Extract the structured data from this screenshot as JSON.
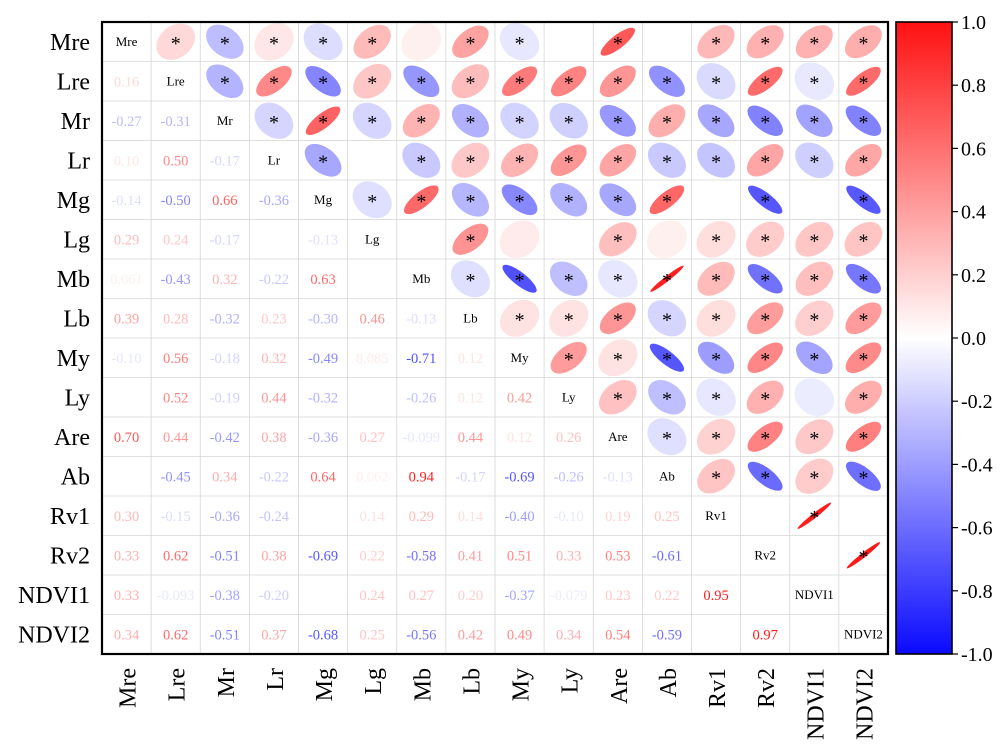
{
  "chart_data": {
    "type": "heatmap",
    "variables": [
      "Mre",
      "Lre",
      "Mr",
      "Lr",
      "Mg",
      "Lg",
      "Mb",
      "Lb",
      "My",
      "Ly",
      "Are",
      "Ab",
      "Rv1",
      "Rv2",
      "NDVI1",
      "NDVI2"
    ],
    "lower_labels": [
      [],
      [
        "0.16"
      ],
      [
        "-0.27",
        "-0.31"
      ],
      [
        "0.10",
        "0.50",
        "-0.17"
      ],
      [
        "-0.14",
        "-0.50",
        "0.66",
        "-0.36"
      ],
      [
        "0.29",
        "0.24",
        "-0.17",
        "",
        "-0.13"
      ],
      [
        "0.061",
        "-0.43",
        "0.32",
        "-0.22",
        "0.63",
        ""
      ],
      [
        "0.39",
        "0.28",
        "-0.32",
        "0.23",
        "-0.30",
        "0.46",
        "-0.13"
      ],
      [
        "-0.10",
        "0.56",
        "-0.18",
        "0.32",
        "-0.49",
        "0.085",
        "-0.71",
        "0.12"
      ],
      [
        "",
        "0.52",
        "-0.19",
        "0.44",
        "-0.32",
        "",
        "-0.26",
        "0.12",
        "0.42"
      ],
      [
        "0.70",
        "0.44",
        "-0.42",
        "0.38",
        "-0.36",
        "0.27",
        "-0.099",
        "0.44",
        "0.12",
        "0.26"
      ],
      [
        "",
        "-0.45",
        "0.34",
        "-0.22",
        "0.64",
        "0.062",
        "0.94",
        "-0.17",
        "-0.69",
        "-0.26",
        "-0.13"
      ],
      [
        "0.30",
        "-0.15",
        "-0.36",
        "-0.24",
        "",
        "0.14",
        "0.29",
        "0.14",
        "-0.40",
        "-0.10",
        "0.19",
        "0.25"
      ],
      [
        "0.33",
        "0.62",
        "-0.51",
        "0.38",
        "-0.69",
        "0.22",
        "-0.58",
        "0.41",
        "0.51",
        "0.33",
        "0.53",
        "-0.61",
        ""
      ],
      [
        "0.33",
        "-0.093",
        "-0.38",
        "-0.20",
        "",
        "0.24",
        "0.27",
        "0.20",
        "-0.37",
        "-0.079",
        "0.23",
        "0.22",
        "0.95",
        ""
      ],
      [
        "0.34",
        "0.62",
        "-0.51",
        "0.37",
        "-0.68",
        "0.25",
        "-0.56",
        "0.42",
        "0.49",
        "0.34",
        "0.54",
        "-0.59",
        "",
        "0.97",
        ""
      ]
    ],
    "missing_value": "blank",
    "significance_marker": "*",
    "colorbar": {
      "ticks": [
        "1.0",
        "0.8",
        "0.6",
        "0.4",
        "0.2",
        "0.0",
        "-0.2",
        "-0.4",
        "-0.6",
        "-0.8",
        "-1.0"
      ],
      "range": [
        -1,
        1
      ],
      "placement": "right"
    },
    "colors": {
      "negative": "#0a0aff",
      "neutral": "#ffffff",
      "positive": "#ff1111"
    },
    "grid": true
  }
}
